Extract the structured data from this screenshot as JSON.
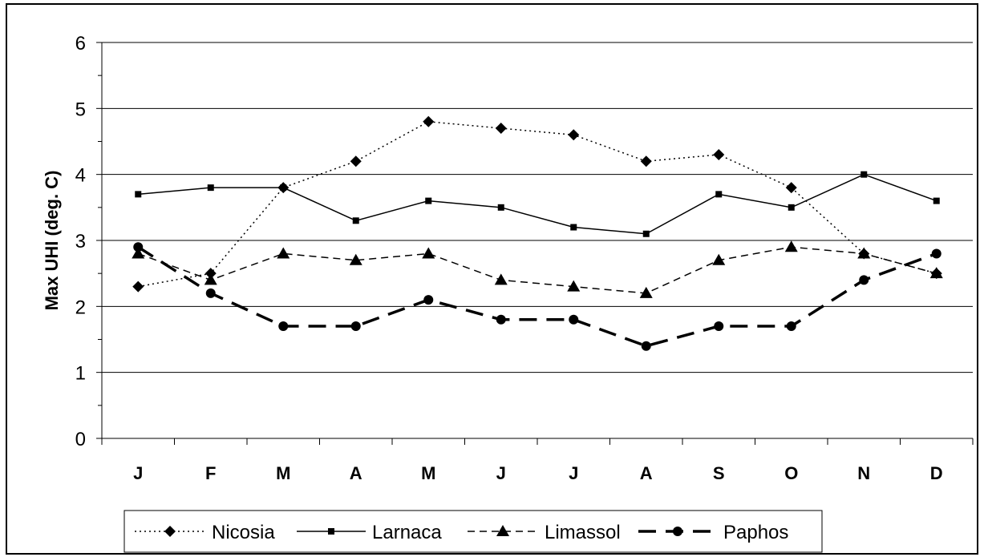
{
  "chart_data": {
    "type": "line",
    "title": "",
    "xlabel": "",
    "ylabel": "Max UHI (deg. C)",
    "ylim": [
      0,
      6
    ],
    "yticks": [
      "0",
      "1",
      "2",
      "3",
      "4",
      "5",
      "6"
    ],
    "grid": "horizontal",
    "legend_position": "bottom",
    "categories": [
      "J",
      "F",
      "M",
      "A",
      "M",
      "J",
      "J",
      "A",
      "S",
      "O",
      "N",
      "D"
    ],
    "series": [
      {
        "name": "Nicosia",
        "marker": "diamond",
        "line": "dotted",
        "values": [
          2.3,
          2.5,
          3.8,
          4.2,
          4.8,
          4.7,
          4.6,
          4.2,
          4.3,
          3.8,
          2.8,
          2.5
        ]
      },
      {
        "name": "Larnaca",
        "marker": "square",
        "line": "solid",
        "values": [
          3.7,
          3.8,
          3.8,
          3.3,
          3.6,
          3.5,
          3.2,
          3.1,
          3.7,
          3.5,
          4.0,
          3.6
        ]
      },
      {
        "name": "Limassol",
        "marker": "triangle",
        "line": "dashed",
        "values": [
          2.8,
          2.4,
          2.8,
          2.7,
          2.8,
          2.4,
          2.3,
          2.2,
          2.7,
          2.9,
          2.8,
          2.5
        ]
      },
      {
        "name": "Paphos",
        "marker": "circle",
        "line": "long-dash-bold",
        "values": [
          2.9,
          2.2,
          1.7,
          1.7,
          2.1,
          1.8,
          1.8,
          1.4,
          1.7,
          1.7,
          2.4,
          2.8
        ]
      }
    ]
  }
}
